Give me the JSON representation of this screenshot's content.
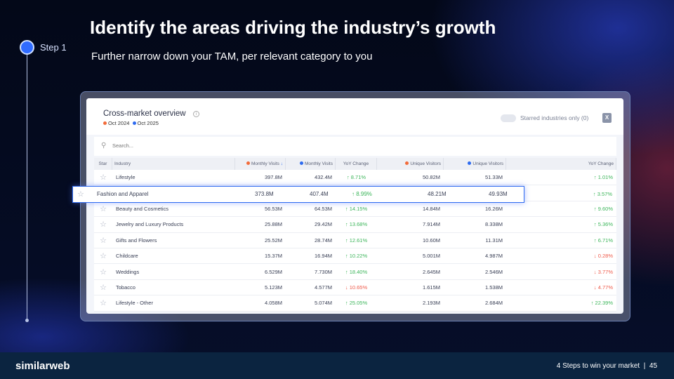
{
  "title": "Identify the areas driving the industry’s growth",
  "subtitle": "Further narrow down your TAM, per relevant category to you",
  "step": "Step 1",
  "widget": {
    "title": "Cross-market overview",
    "period_a": "Oct 2024",
    "period_b": "Oct 2025",
    "color_a": "#f26b3a",
    "color_b": "#2e6bf0",
    "starred_toggle": "Starred industries only (0)",
    "toggle_on": false,
    "search_placeholder": "Search...",
    "columns": [
      "Star",
      "Industry",
      "Monthly Visits",
      "Monthly Visits",
      "YoY Change",
      "Unique Visitors",
      "Unique Visitors",
      "YoY Change"
    ],
    "sort_icon": "↓",
    "rows": [
      {
        "industry": "Lifestyle",
        "mv_a": "397.8M",
        "mv_b": "432.4M",
        "yoy_v": "↑ 8.71%",
        "uv_a": "50.82M",
        "uv_b": "51.33M",
        "yoy_u": "↑ 1.01%"
      },
      {
        "industry": "Fashion and Apparel",
        "mv_a": "373.8M",
        "mv_b": "407.4M",
        "yoy_v": "↑ 8.99%",
        "uv_a": "48.21M",
        "uv_b": "49.93M",
        "yoy_u": "↑ 3.57%"
      },
      {
        "industry": "Beauty and Cosmetics",
        "mv_a": "56.53M",
        "mv_b": "64.53M",
        "yoy_v": "↑ 14.15%",
        "uv_a": "14.84M",
        "uv_b": "16.26M",
        "yoy_u": "↑ 9.60%"
      },
      {
        "industry": "Jewelry and Luxury Products",
        "mv_a": "25.88M",
        "mv_b": "29.42M",
        "yoy_v": "↑ 13.68%",
        "uv_a": "7.914M",
        "uv_b": "8.338M",
        "yoy_u": "↑ 5.36%"
      },
      {
        "industry": "Gifts and Flowers",
        "mv_a": "25.52M",
        "mv_b": "28.74M",
        "yoy_v": "↑ 12.61%",
        "uv_a": "10.60M",
        "uv_b": "11.31M",
        "yoy_u": "↑ 6.71%"
      },
      {
        "industry": "Childcare",
        "mv_a": "15.37M",
        "mv_b": "16.94M",
        "yoy_v": "↑ 10.22%",
        "uv_a": "5.001M",
        "uv_b": "4.987M",
        "yoy_u": "↓ 0.28%"
      },
      {
        "industry": "Weddings",
        "mv_a": "6.529M",
        "mv_b": "7.730M",
        "yoy_v": "↑ 18.40%",
        "uv_a": "2.645M",
        "uv_b": "2.546M",
        "yoy_u": "↓ 3.77%"
      },
      {
        "industry": "Tobacco",
        "mv_a": "5.123M",
        "mv_b": "4.577M",
        "yoy_v": "↓ 10.65%",
        "uv_a": "1.615M",
        "uv_b": "1.538M",
        "yoy_u": "↓ 4.77%"
      },
      {
        "industry": "Lifestyle - Other",
        "mv_a": "4.058M",
        "mv_b": "5.074M",
        "yoy_v": "↑ 25.05%",
        "uv_a": "2.193M",
        "uv_b": "2.684M",
        "yoy_u": "↑ 22.39%"
      }
    ]
  },
  "footer": {
    "logo": "similarweb",
    "text": "4 Steps to win your market  |  45"
  }
}
